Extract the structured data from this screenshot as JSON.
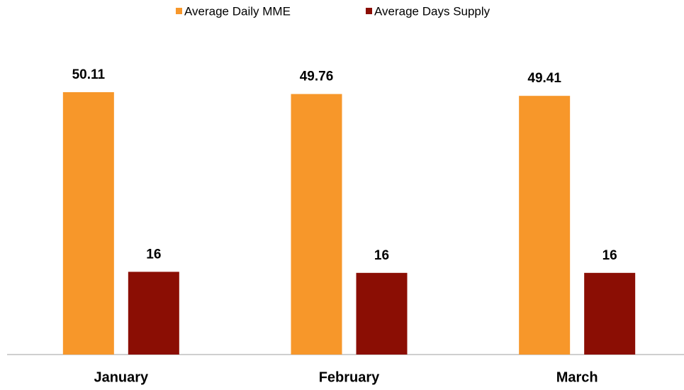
{
  "chart_data": {
    "type": "bar",
    "categories": [
      "January",
      "February",
      "March"
    ],
    "series": [
      {
        "name": "Average Daily MME",
        "color": "#f7972a",
        "values": [
          50.11,
          49.76,
          49.41
        ]
      },
      {
        "name": "Average Days Supply",
        "color": "#8b0e04",
        "values": [
          15.8,
          15.6,
          15.6
        ],
        "value_labels": [
          "16",
          "16",
          "16"
        ]
      }
    ],
    "legend": "top"
  }
}
